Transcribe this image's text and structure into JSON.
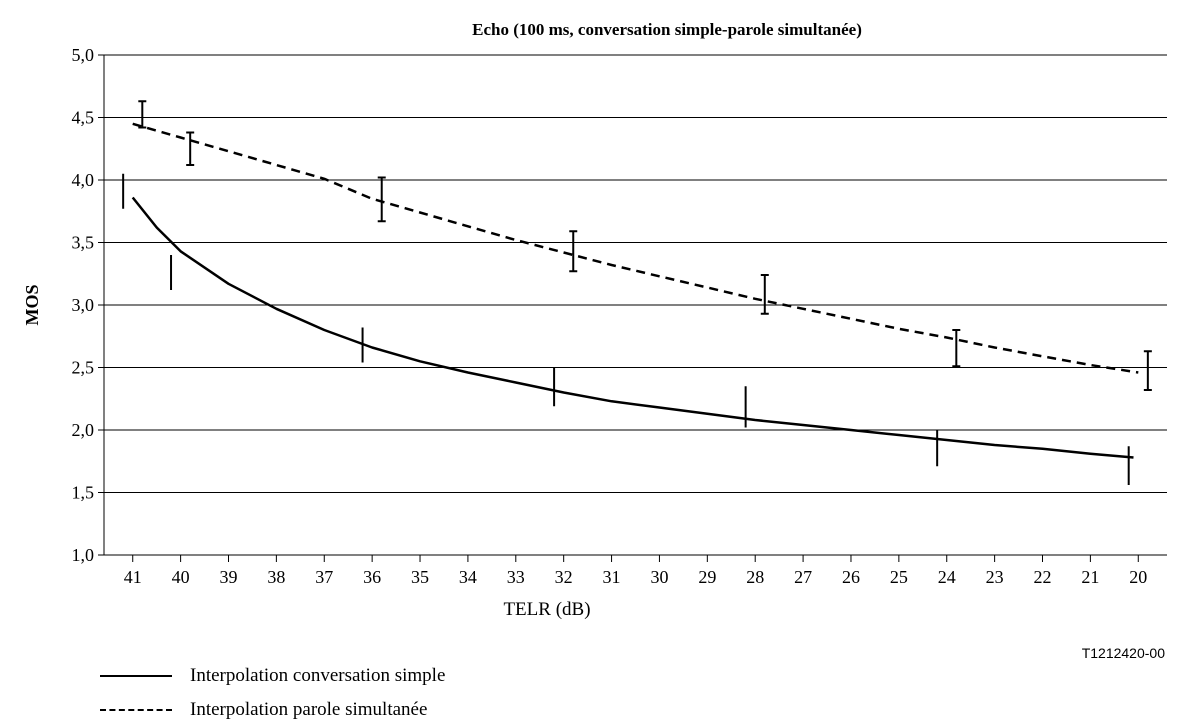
{
  "chart_data": {
    "type": "line",
    "title": "Echo (100 ms, conversation simple-parole simultanée)",
    "xlabel": "TELR (dB)",
    "ylabel": "MOS",
    "figure_id": "T1212420-00",
    "x_ticks": [
      41,
      40,
      39,
      38,
      37,
      36,
      35,
      34,
      33,
      32,
      31,
      30,
      29,
      28,
      27,
      26,
      25,
      24,
      23,
      22,
      21,
      20
    ],
    "x_reversed": true,
    "xlim": [
      41.6,
      19.4
    ],
    "ylim": [
      1.0,
      5.0
    ],
    "y_ticks": [
      "1,0",
      "1,5",
      "2,0",
      "2,5",
      "3,0",
      "3,5",
      "4,0",
      "4,5",
      "5,0"
    ],
    "grid": "horizontal",
    "legend_position": "bottom-left",
    "series": [
      {
        "name": "Interpolation conversation simple",
        "style": "solid",
        "color": "#000000",
        "curve": [
          {
            "x": 41.0,
            "y": 3.86
          },
          {
            "x": 40.5,
            "y": 3.62
          },
          {
            "x": 40.0,
            "y": 3.43
          },
          {
            "x": 39.0,
            "y": 3.17
          },
          {
            "x": 38.0,
            "y": 2.97
          },
          {
            "x": 37.0,
            "y": 2.8
          },
          {
            "x": 36.0,
            "y": 2.66
          },
          {
            "x": 35.0,
            "y": 2.55
          },
          {
            "x": 34.0,
            "y": 2.46
          },
          {
            "x": 33.0,
            "y": 2.38
          },
          {
            "x": 32.0,
            "y": 2.3
          },
          {
            "x": 31.0,
            "y": 2.23
          },
          {
            "x": 30.0,
            "y": 2.18
          },
          {
            "x": 29.0,
            "y": 2.13
          },
          {
            "x": 28.0,
            "y": 2.08
          },
          {
            "x": 27.0,
            "y": 2.04
          },
          {
            "x": 26.0,
            "y": 2.0
          },
          {
            "x": 25.0,
            "y": 1.96
          },
          {
            "x": 24.0,
            "y": 1.92
          },
          {
            "x": 23.0,
            "y": 1.88
          },
          {
            "x": 22.0,
            "y": 1.85
          },
          {
            "x": 21.0,
            "y": 1.81
          },
          {
            "x": 20.1,
            "y": 1.78
          }
        ],
        "error_bars": [
          {
            "x": 41.2,
            "low": 3.77,
            "high": 4.05
          },
          {
            "x": 40.2,
            "low": 3.12,
            "high": 3.4
          },
          {
            "x": 36.2,
            "low": 2.54,
            "high": 2.82
          },
          {
            "x": 32.2,
            "low": 2.19,
            "high": 2.5
          },
          {
            "x": 28.2,
            "low": 2.02,
            "high": 2.35
          },
          {
            "x": 24.2,
            "low": 1.71,
            "high": 2.0
          },
          {
            "x": 20.2,
            "low": 1.56,
            "high": 1.87
          }
        ]
      },
      {
        "name": "Interpolation parole simultanée",
        "style": "dashed",
        "color": "#000000",
        "curve": [
          {
            "x": 41.0,
            "y": 4.45
          },
          {
            "x": 40.0,
            "y": 4.34
          },
          {
            "x": 39.0,
            "y": 4.23
          },
          {
            "x": 38.0,
            "y": 4.12
          },
          {
            "x": 37.0,
            "y": 4.01
          },
          {
            "x": 36.0,
            "y": 3.85
          },
          {
            "x": 35.0,
            "y": 3.74
          },
          {
            "x": 34.0,
            "y": 3.63
          },
          {
            "x": 33.0,
            "y": 3.52
          },
          {
            "x": 32.0,
            "y": 3.42
          },
          {
            "x": 31.0,
            "y": 3.32
          },
          {
            "x": 30.0,
            "y": 3.23
          },
          {
            "x": 29.0,
            "y": 3.14
          },
          {
            "x": 28.0,
            "y": 3.05
          },
          {
            "x": 27.0,
            "y": 2.97
          },
          {
            "x": 26.0,
            "y": 2.89
          },
          {
            "x": 25.0,
            "y": 2.81
          },
          {
            "x": 24.0,
            "y": 2.74
          },
          {
            "x": 23.0,
            "y": 2.66
          },
          {
            "x": 22.0,
            "y": 2.59
          },
          {
            "x": 21.0,
            "y": 2.52
          },
          {
            "x": 20.0,
            "y": 2.46
          }
        ],
        "error_bars": [
          {
            "x": 40.8,
            "low": 4.42,
            "high": 4.63
          },
          {
            "x": 39.8,
            "low": 4.12,
            "high": 4.38
          },
          {
            "x": 35.8,
            "low": 3.67,
            "high": 4.02
          },
          {
            "x": 31.8,
            "low": 3.27,
            "high": 3.59
          },
          {
            "x": 27.8,
            "low": 2.93,
            "high": 3.24
          },
          {
            "x": 23.8,
            "low": 2.51,
            "high": 2.8
          },
          {
            "x": 19.8,
            "low": 2.32,
            "high": 2.63
          }
        ]
      }
    ]
  }
}
